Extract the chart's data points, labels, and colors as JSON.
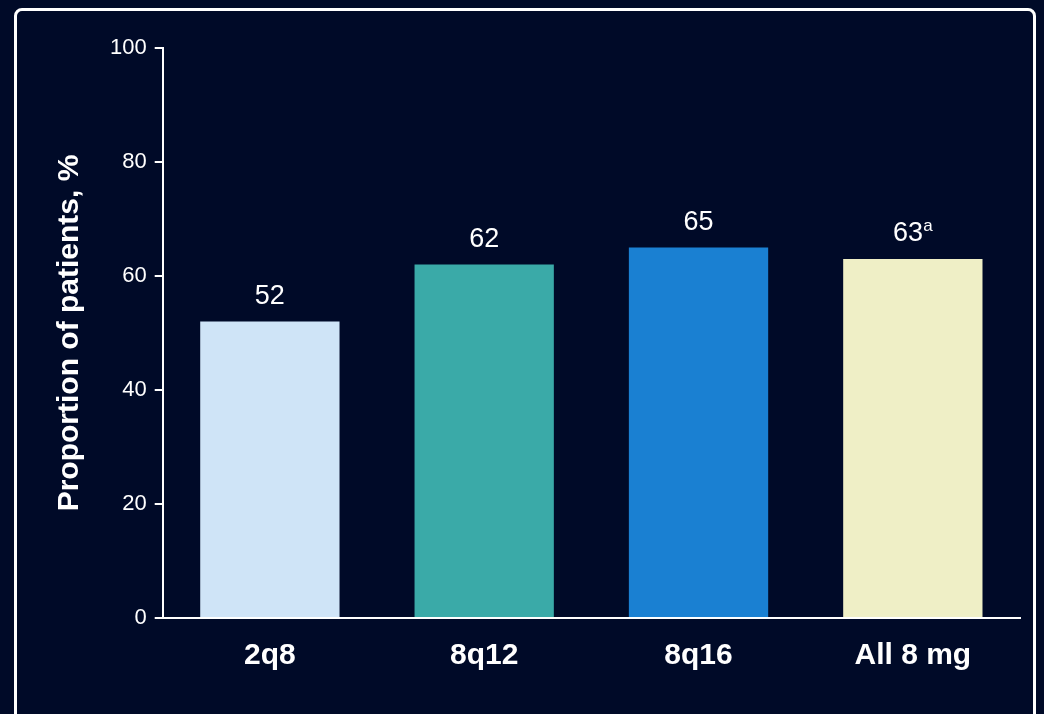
{
  "chart_data": {
    "type": "bar",
    "ylabel": "Proportion of patients, %",
    "categories": [
      "2q8",
      "8q12",
      "8q16",
      "All 8 mg"
    ],
    "values": [
      52,
      62,
      65,
      63
    ],
    "colors": [
      "#cfe4f7",
      "#3aaaa8",
      "#1a80d2",
      "#efefc6"
    ],
    "value_labels": [
      "52",
      "62",
      "65",
      "63$^{a}$"
    ],
    "ylim": [
      0,
      100
    ],
    "yticks": [
      0,
      20,
      40,
      60,
      80,
      100
    ],
    "grid": false,
    "legend": false
  }
}
